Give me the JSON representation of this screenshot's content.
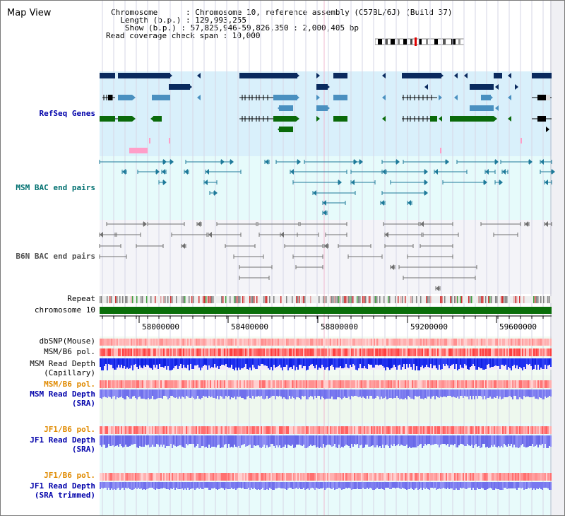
{
  "title": "Map View",
  "header": {
    "chromosome_label": "Chromosome      : Chromosome 10, reference assembly (C57BL/6J) (Build 37)",
    "length_label": "  Length (b.p.) : 129,993,255",
    "show_label": "   Show (b.p.) : 57,825,946-59,826,350 : 2,000,405 bp",
    "coverage_label": "Read coverage check span : 10,000"
  },
  "tracks": {
    "refseq": "RefSeq Genes",
    "msm_bac": "MSM BAC end pairs",
    "b6n_bac": "B6N BAC end pairs",
    "repeat": "Repeat",
    "chromosome": "chromosome 10",
    "dbsnp": "dbSNP(Mouse)",
    "msm_b6_pol": "MSM/B6 pol.",
    "msm_depth_cap_1": "MSM Read Depth",
    "msm_depth_cap_2": "(Capillary)",
    "msm_b6_pol_2": "MSM/B6 pol.",
    "msm_depth_sra_1": "MSM Read Depth",
    "msm_depth_sra_2": "(SRA)",
    "jf1_b6_pol": "JF1/B6 pol.",
    "jf1_depth_sra_1": "JF1 Read Depth",
    "jf1_depth_sra_2": "(SRA)",
    "jf1_b6_pol_2": "JF1/B6 pol.",
    "jf1_depth_trim_1": "JF1 Read Depth",
    "jf1_depth_trim_2": "(SRA trimmed)"
  },
  "axis": {
    "ticks": [
      "58000000",
      "58400000",
      "58800000",
      "59200000",
      "59600000"
    ]
  },
  "colors": {
    "refseq_bg": "#d9f0fb",
    "bac_bg": "#e6fbfb",
    "b6n_bg": "#f4f4f8",
    "gene_dark": "#0a2a5e",
    "gene_mid": "#4a90c0",
    "gene_green": "#0a6a0a",
    "msm_bac": "#1e7a9a",
    "b6n_bac": "#707070",
    "chromosome": "#0a6e0a",
    "label_blue": "#0000aa",
    "label_teal": "#007070",
    "label_orange": "#e08a00",
    "label_gray": "#505050",
    "depth_blue": "#1a2aee",
    "depth_violet": "#8080f0"
  }
}
